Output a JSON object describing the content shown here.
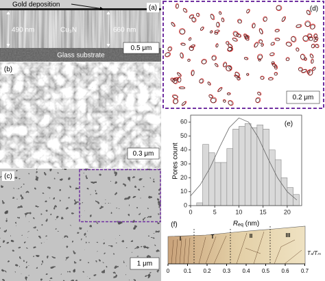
{
  "panels": {
    "a": {
      "label": "(a)",
      "gold": "Gold deposition",
      "left_thickness": "490 nm",
      "film": "Cu₃N",
      "right_thickness": "660 nm",
      "scale": "0.5 μm",
      "substrate": "Glass substrate"
    },
    "b": {
      "label": "(b)",
      "scale": "0.3 μm"
    },
    "c": {
      "label": "(c)",
      "scale": "1 μm"
    },
    "d": {
      "label": "(d)",
      "scale": "0.2 μm"
    },
    "f": {
      "label": "(f)",
      "zones": [
        "I",
        "T",
        "II",
        "III"
      ],
      "axis_label": "Tₛ/Tₘ",
      "axis_ticks": [
        0,
        0.1,
        0.2,
        0.3,
        0.4,
        0.5,
        0.6,
        0.7
      ]
    }
  },
  "chart_data": {
    "type": "histogram",
    "label": "(e)",
    "ylabel": "Pores count",
    "xlabel": {
      "symbol": "R",
      "subscript": "eq",
      "unit": " (nm)"
    },
    "bins": [
      1.25,
      2.5,
      3.75,
      5,
      6.25,
      7.5,
      8.75,
      10,
      11.25,
      12.5,
      13.75,
      15,
      16.25,
      17.5,
      18.75,
      20,
      21.25,
      22.5
    ],
    "values": [
      2,
      44,
      38,
      31,
      31,
      41,
      55,
      57,
      59,
      56,
      58,
      55,
      40,
      33,
      20,
      13,
      8
    ],
    "color": "#d9d9d9",
    "fit": {
      "x": [
        0,
        2,
        4,
        6,
        8,
        10,
        12,
        14,
        16,
        18,
        20,
        22
      ],
      "values": [
        7,
        15,
        27,
        42,
        56,
        63,
        60,
        49,
        34,
        20,
        10,
        4
      ]
    },
    "xlim": [
      0,
      23
    ],
    "ylim": [
      0,
      65
    ],
    "xticks": [
      0,
      5,
      10,
      15,
      20
    ],
    "yticks": [
      0,
      10,
      20,
      30,
      40,
      50,
      60
    ]
  }
}
